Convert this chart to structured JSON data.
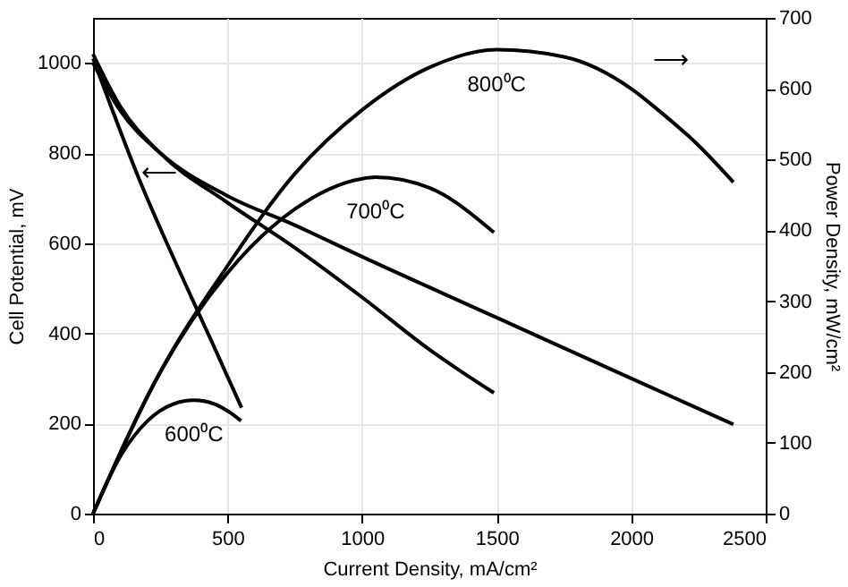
{
  "chart_data": {
    "type": "line",
    "xlabel": "Current Density, mA/cm²",
    "ylabel": "Cell Potential, mV",
    "y2label": "Power Density, mW/cm²",
    "xlim": [
      0,
      2500
    ],
    "xticks": [
      0,
      500,
      1000,
      1500,
      2000,
      2500
    ],
    "ylim": [
      0,
      1100
    ],
    "yticks": [
      0,
      200,
      400,
      600,
      800,
      1000
    ],
    "y2lim": [
      0,
      700
    ],
    "y2ticks": [
      0,
      100,
      200,
      300,
      400,
      500,
      600,
      700
    ],
    "grid": true,
    "series": [
      {
        "color": "#000000",
        "x": [
          0,
          50,
          166,
          319,
          450,
          552
        ],
        "values": [
          1010,
          930,
          750,
          541,
          370,
          235
        ]
      },
      {
        "color": "#000000",
        "x": [
          0,
          100,
          250,
          500,
          750,
          1000,
          1250,
          1490
        ],
        "values": [
          1020,
          905,
          800,
          690,
          590,
          480,
          364,
          268
        ]
      },
      {
        "color": "#000000",
        "x": [
          0,
          100,
          250,
          500,
          750,
          1000,
          1500,
          2000,
          2380
        ],
        "values": [
          1000,
          895,
          800,
          705,
          640,
          570,
          435,
          300,
          198
        ]
      },
      {
        "name": "600⁰C",
        "color": "#000000",
        "axis": "y2",
        "x": [
          0,
          100,
          200,
          300,
          375,
          450,
          500,
          550
        ],
        "values": [
          0,
          80,
          130,
          155,
          160,
          155,
          145,
          131
        ]
      },
      {
        "name": "700⁰C",
        "color": "#000000",
        "axis": "y2",
        "x": [
          0,
          250,
          500,
          750,
          1000,
          1050,
          1250,
          1490
        ],
        "values": [
          0,
          200,
          340,
          430,
          473,
          475,
          460,
          397
        ]
      },
      {
        "name": "800⁰C",
        "color": "#000000",
        "axis": "y2",
        "x": [
          0,
          250,
          500,
          750,
          1000,
          1250,
          1500,
          1750,
          2000,
          2100,
          2250,
          2380
        ],
        "values": [
          0,
          200,
          350,
          480,
          570,
          630,
          655,
          645,
          600,
          570,
          520,
          468
        ]
      }
    ],
    "annotations": [
      "⟵",
      "⟶"
    ]
  }
}
